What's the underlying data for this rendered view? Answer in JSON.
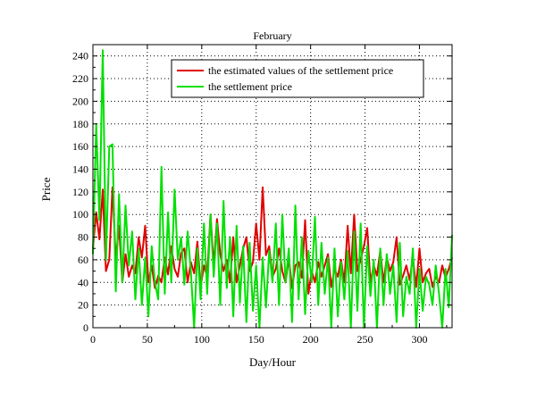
{
  "chart_data": {
    "type": "line",
    "title": "February",
    "xlabel": "Day/Hour",
    "ylabel": "Price",
    "xlim": [
      0,
      330
    ],
    "ylim": [
      0,
      250
    ],
    "x_ticks": [
      "0",
      "50",
      "100",
      "150",
      "200",
      "250",
      "300"
    ],
    "x_tick_values": [
      0,
      50,
      100,
      150,
      200,
      250,
      300
    ],
    "y_ticks": [
      "0",
      "20",
      "40",
      "60",
      "80",
      "100",
      "120",
      "140",
      "160",
      "180",
      "200",
      "220",
      "240"
    ],
    "y_tick_values": [
      0,
      20,
      40,
      60,
      80,
      100,
      120,
      140,
      160,
      180,
      200,
      220,
      240
    ],
    "grid": true,
    "legend_position": "top-right",
    "series": [
      {
        "name": "the estimated values of the settlement price",
        "color": "#e00000",
        "x": [
          0,
          3,
          6,
          9,
          12,
          15,
          18,
          21,
          24,
          27,
          30,
          33,
          36,
          39,
          42,
          45,
          48,
          51,
          54,
          57,
          60,
          63,
          66,
          69,
          72,
          75,
          78,
          81,
          84,
          87,
          90,
          93,
          96,
          99,
          102,
          105,
          108,
          111,
          114,
          117,
          120,
          123,
          126,
          129,
          132,
          135,
          138,
          141,
          144,
          147,
          150,
          153,
          156,
          159,
          162,
          165,
          168,
          171,
          174,
          177,
          180,
          183,
          186,
          189,
          192,
          195,
          198,
          201,
          204,
          207,
          210,
          213,
          216,
          219,
          222,
          225,
          228,
          231,
          234,
          237,
          240,
          243,
          246,
          249,
          252,
          255,
          258,
          261,
          264,
          267,
          270,
          273,
          276,
          279,
          282,
          285,
          288,
          291,
          294,
          297,
          300,
          303,
          306,
          309,
          312,
          315,
          318,
          321,
          324,
          327,
          330
        ],
        "values": [
          70,
          102,
          78,
          122,
          50,
          60,
          124,
          60,
          90,
          40,
          65,
          45,
          55,
          48,
          80,
          62,
          90,
          40,
          55,
          35,
          46,
          40,
          62,
          47,
          72,
          52,
          45,
          66,
          70,
          40,
          58,
          48,
          76,
          36,
          55,
          45,
          100,
          55,
          96,
          65,
          50,
          60,
          40,
          80,
          40,
          55,
          70,
          80,
          50,
          58,
          92,
          60,
          124,
          64,
          72,
          45,
          52,
          70,
          50,
          40,
          62,
          35,
          55,
          58,
          44,
          95,
          30,
          50,
          40,
          58,
          45,
          55,
          65,
          36,
          52,
          45,
          60,
          40,
          90,
          48,
          100,
          50,
          60,
          72,
          88,
          40,
          55,
          46,
          68,
          40,
          62,
          50,
          58,
          80,
          38,
          46,
          55,
          42,
          62,
          36,
          70,
          40,
          48,
          52,
          36,
          45,
          40,
          55,
          44,
          52,
          62
        ]
      },
      {
        "name": "the settlement price",
        "color": "#00e000",
        "x": [
          0,
          3,
          6,
          9,
          12,
          15,
          18,
          21,
          24,
          27,
          30,
          33,
          36,
          39,
          42,
          45,
          48,
          51,
          54,
          57,
          60,
          63,
          66,
          69,
          72,
          75,
          78,
          81,
          84,
          87,
          90,
          93,
          96,
          99,
          102,
          105,
          108,
          111,
          114,
          117,
          120,
          123,
          126,
          129,
          132,
          135,
          138,
          141,
          144,
          147,
          150,
          153,
          156,
          159,
          162,
          165,
          168,
          171,
          174,
          177,
          180,
          183,
          186,
          189,
          192,
          195,
          198,
          201,
          204,
          207,
          210,
          213,
          216,
          219,
          222,
          225,
          228,
          231,
          234,
          237,
          240,
          243,
          246,
          249,
          252,
          255,
          258,
          261,
          264,
          267,
          270,
          273,
          276,
          279,
          282,
          285,
          288,
          291,
          294,
          297,
          300,
          303,
          306,
          309,
          312,
          315,
          318,
          321,
          324,
          327,
          330
        ],
        "values": [
          65,
          180,
          95,
          245,
          60,
          160,
          162,
          32,
          118,
          40,
          108,
          55,
          85,
          25,
          70,
          20,
          62,
          10,
          72,
          40,
          25,
          142,
          30,
          102,
          40,
          122,
          60,
          80,
          38,
          85,
          50,
          0,
          70,
          25,
          92,
          30,
          100,
          45,
          92,
          20,
          112,
          35,
          80,
          10,
          90,
          22,
          72,
          5,
          75,
          15,
          55,
          0,
          62,
          18,
          68,
          40,
          92,
          20,
          100,
          40,
          70,
          5,
          108,
          25,
          80,
          12,
          68,
          40,
          98,
          20,
          75,
          30,
          62,
          0,
          70,
          10,
          58,
          25,
          68,
          0,
          85,
          15,
          92,
          0,
          72,
          28,
          60,
          0,
          70,
          20,
          65,
          30,
          55,
          5,
          75,
          10,
          45,
          30,
          70,
          0,
          52,
          15,
          45,
          38,
          20,
          55,
          30,
          0,
          52,
          18,
          82
        ]
      }
    ]
  }
}
